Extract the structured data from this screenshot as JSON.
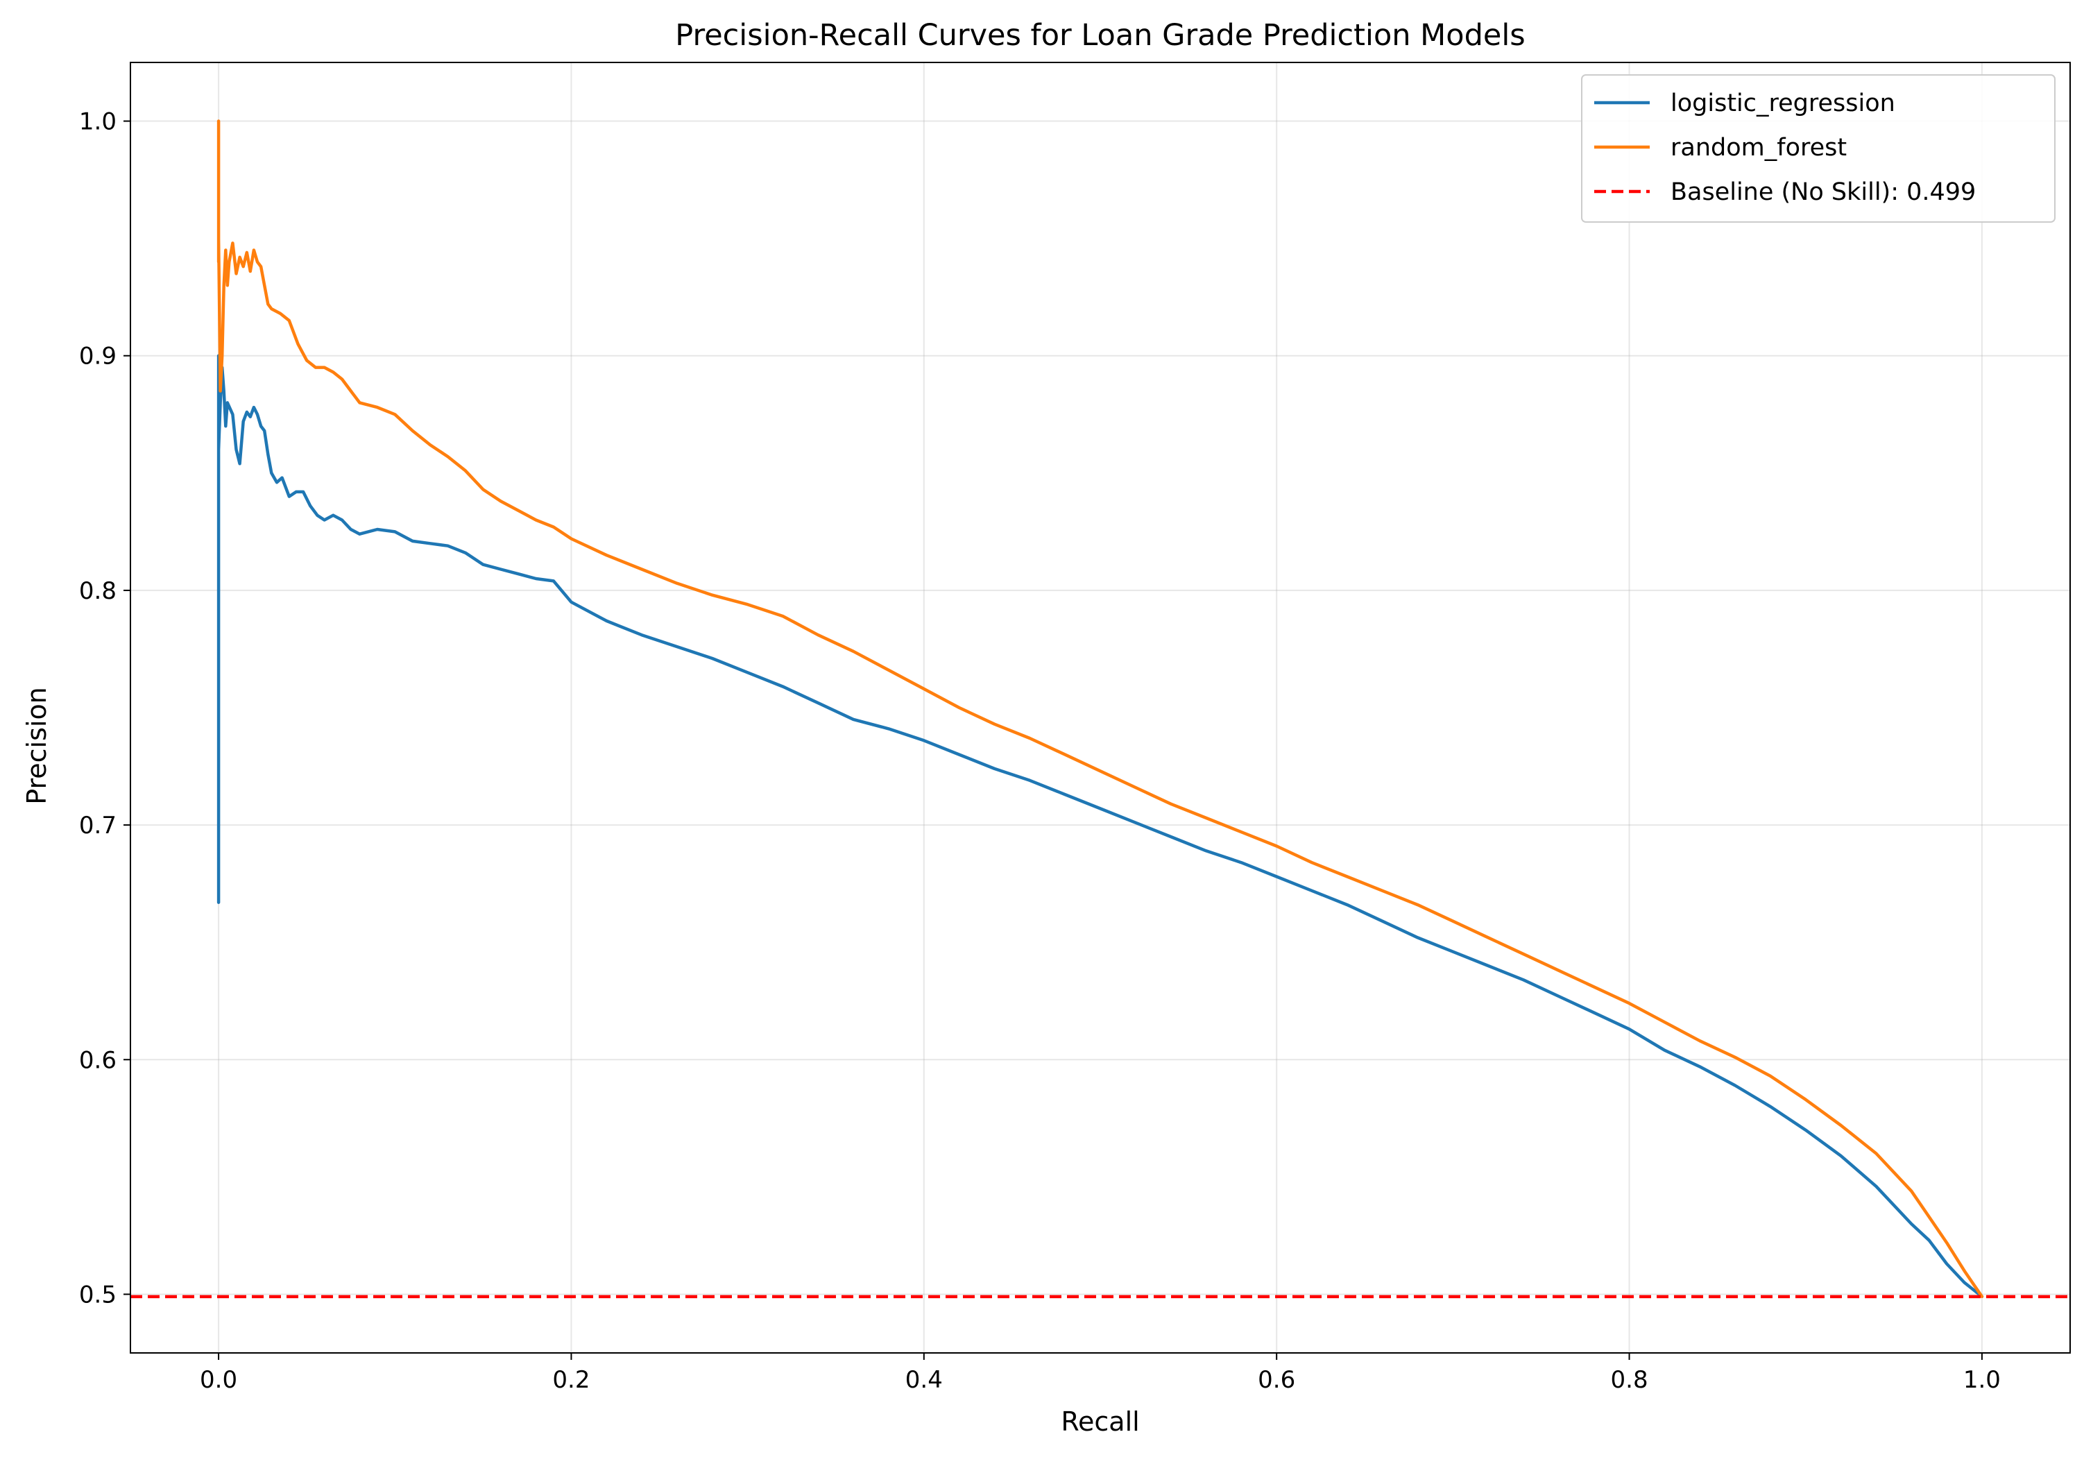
{
  "chart_data": {
    "type": "line",
    "title": "Precision-Recall Curves for Loan Grade Prediction Models",
    "xlabel": "Recall",
    "ylabel": "Precision",
    "xlim": [
      -0.05,
      1.05
    ],
    "ylim": [
      0.475,
      1.025
    ],
    "xticks": [
      0.0,
      0.2,
      0.4,
      0.6,
      0.8,
      1.0
    ],
    "xtick_labels": [
      "0.0",
      "0.2",
      "0.4",
      "0.6",
      "0.8",
      "1.0"
    ],
    "yticks": [
      0.5,
      0.6,
      0.7,
      0.8,
      0.9,
      1.0
    ],
    "ytick_labels": [
      "0.5",
      "0.6",
      "0.7",
      "0.8",
      "0.9",
      "1.0"
    ],
    "grid": true,
    "legend_position": "top-right",
    "series": [
      {
        "name": "logistic_regression",
        "color": "#1f77b4",
        "style": "solid",
        "x": [
          0.0,
          0.0,
          0.0,
          0.0,
          0.001,
          0.002,
          0.003,
          0.004,
          0.005,
          0.008,
          0.01,
          0.012,
          0.014,
          0.016,
          0.018,
          0.02,
          0.022,
          0.024,
          0.026,
          0.028,
          0.03,
          0.033,
          0.036,
          0.04,
          0.044,
          0.048,
          0.052,
          0.056,
          0.06,
          0.065,
          0.07,
          0.075,
          0.08,
          0.09,
          0.1,
          0.11,
          0.12,
          0.13,
          0.14,
          0.15,
          0.16,
          0.17,
          0.18,
          0.19,
          0.2,
          0.22,
          0.24,
          0.26,
          0.28,
          0.3,
          0.32,
          0.34,
          0.36,
          0.38,
          0.4,
          0.42,
          0.44,
          0.46,
          0.48,
          0.5,
          0.52,
          0.54,
          0.56,
          0.58,
          0.6,
          0.62,
          0.64,
          0.66,
          0.68,
          0.7,
          0.72,
          0.74,
          0.76,
          0.78,
          0.8,
          0.82,
          0.84,
          0.86,
          0.88,
          0.9,
          0.92,
          0.94,
          0.96,
          0.97,
          0.98,
          0.99,
          1.0
        ],
        "y": [
          0.667,
          0.75,
          0.9,
          0.86,
          0.88,
          0.895,
          0.885,
          0.87,
          0.88,
          0.875,
          0.86,
          0.854,
          0.872,
          0.876,
          0.874,
          0.878,
          0.875,
          0.87,
          0.868,
          0.858,
          0.85,
          0.846,
          0.848,
          0.84,
          0.842,
          0.842,
          0.836,
          0.832,
          0.83,
          0.832,
          0.83,
          0.826,
          0.824,
          0.826,
          0.825,
          0.821,
          0.82,
          0.819,
          0.816,
          0.811,
          0.809,
          0.807,
          0.805,
          0.804,
          0.795,
          0.787,
          0.781,
          0.776,
          0.771,
          0.765,
          0.759,
          0.752,
          0.745,
          0.741,
          0.736,
          0.73,
          0.724,
          0.719,
          0.713,
          0.707,
          0.701,
          0.695,
          0.689,
          0.684,
          0.678,
          0.672,
          0.666,
          0.659,
          0.652,
          0.646,
          0.64,
          0.634,
          0.627,
          0.62,
          0.613,
          0.604,
          0.597,
          0.589,
          0.58,
          0.57,
          0.559,
          0.546,
          0.53,
          0.523,
          0.513,
          0.505,
          0.499
        ]
      },
      {
        "name": "random_forest",
        "color": "#ff7f0e",
        "style": "solid",
        "x": [
          0.0,
          0.0,
          0.0,
          0.001,
          0.002,
          0.003,
          0.004,
          0.005,
          0.006,
          0.008,
          0.01,
          0.012,
          0.014,
          0.016,
          0.018,
          0.02,
          0.022,
          0.024,
          0.026,
          0.028,
          0.03,
          0.035,
          0.04,
          0.045,
          0.05,
          0.055,
          0.06,
          0.065,
          0.07,
          0.075,
          0.08,
          0.09,
          0.1,
          0.11,
          0.12,
          0.13,
          0.14,
          0.15,
          0.16,
          0.17,
          0.18,
          0.19,
          0.2,
          0.22,
          0.24,
          0.26,
          0.28,
          0.3,
          0.32,
          0.34,
          0.36,
          0.38,
          0.4,
          0.42,
          0.44,
          0.46,
          0.48,
          0.5,
          0.52,
          0.54,
          0.56,
          0.58,
          0.6,
          0.62,
          0.64,
          0.66,
          0.68,
          0.7,
          0.72,
          0.74,
          0.76,
          0.78,
          0.8,
          0.82,
          0.84,
          0.86,
          0.88,
          0.9,
          0.92,
          0.94,
          0.96,
          0.97,
          0.98,
          0.99,
          1.0
        ],
        "y": [
          0.94,
          1.0,
          0.95,
          0.885,
          0.9,
          0.93,
          0.945,
          0.93,
          0.94,
          0.948,
          0.935,
          0.942,
          0.938,
          0.944,
          0.936,
          0.945,
          0.94,
          0.938,
          0.93,
          0.922,
          0.92,
          0.918,
          0.915,
          0.905,
          0.898,
          0.895,
          0.895,
          0.893,
          0.89,
          0.885,
          0.88,
          0.878,
          0.875,
          0.868,
          0.862,
          0.857,
          0.851,
          0.843,
          0.838,
          0.834,
          0.83,
          0.827,
          0.822,
          0.815,
          0.809,
          0.803,
          0.798,
          0.794,
          0.789,
          0.781,
          0.774,
          0.766,
          0.758,
          0.75,
          0.743,
          0.737,
          0.73,
          0.723,
          0.716,
          0.709,
          0.703,
          0.697,
          0.691,
          0.684,
          0.678,
          0.672,
          0.666,
          0.659,
          0.652,
          0.645,
          0.638,
          0.631,
          0.624,
          0.616,
          0.608,
          0.601,
          0.593,
          0.583,
          0.572,
          0.56,
          0.544,
          0.533,
          0.522,
          0.51,
          0.499
        ]
      },
      {
        "name": "Baseline (No Skill): 0.499",
        "color": "#ff0000",
        "style": "dashed",
        "y_constant": 0.499
      }
    ]
  }
}
